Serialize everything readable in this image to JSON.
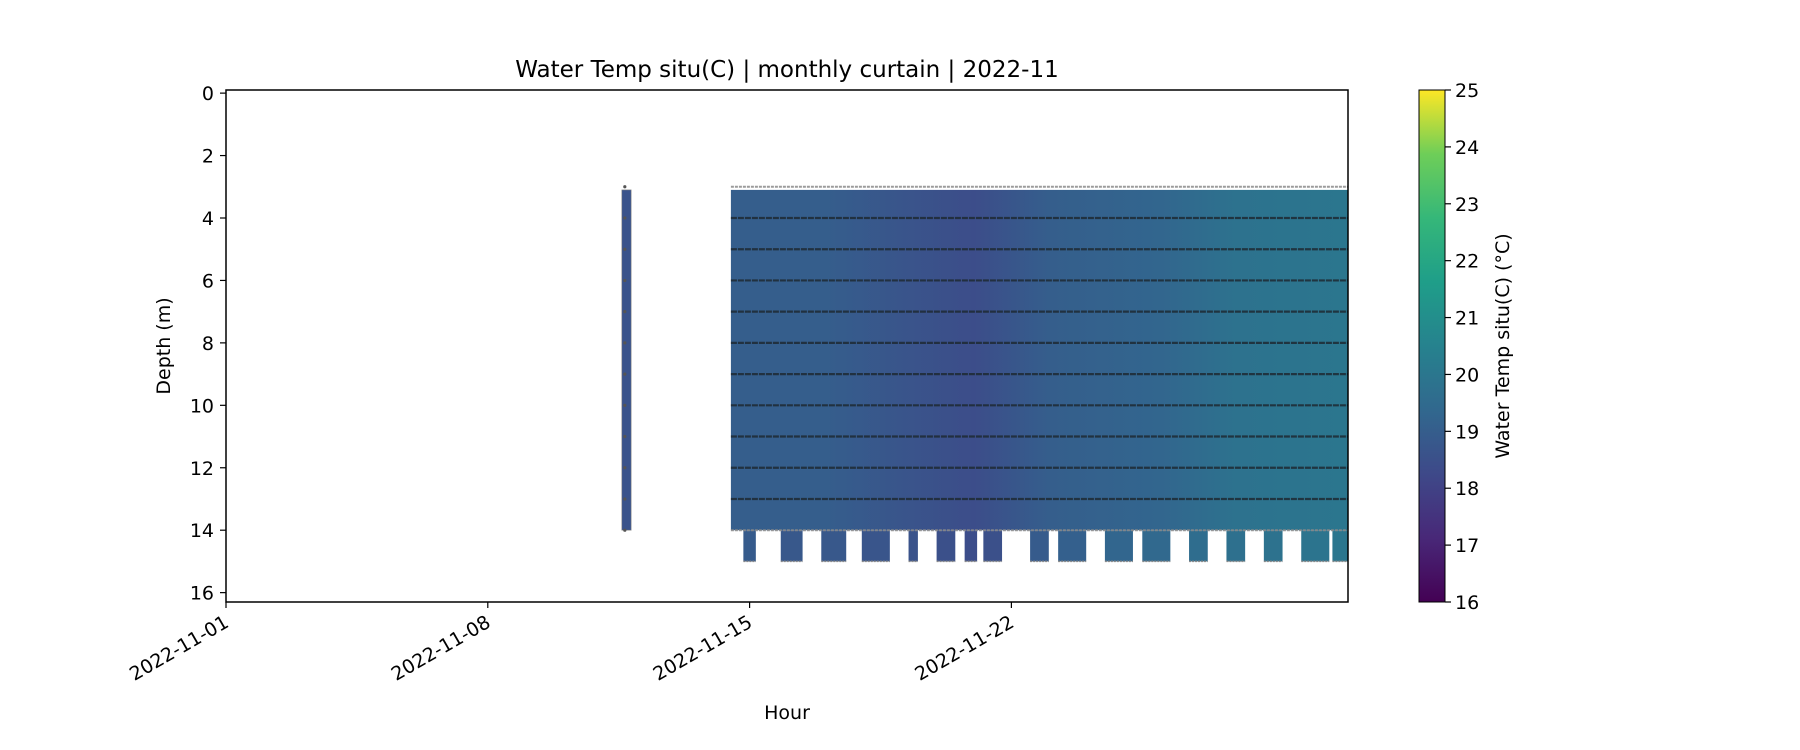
{
  "chart_data": {
    "type": "heatmap",
    "title": "Water Temp situ(C) | monthly curtain | 2022-11",
    "xlabel": "Hour",
    "ylabel": "Depth (m)",
    "xlim": [
      "2022-11-01",
      "2022-12-01"
    ],
    "ylim": [
      16.3,
      -0.1
    ],
    "x_ticks": [
      "2022-11-01",
      "2022-11-08",
      "2022-11-15",
      "2022-11-22"
    ],
    "y_ticks": [
      0,
      2,
      4,
      6,
      8,
      10,
      12,
      14,
      16
    ],
    "y_inverted": true,
    "colormap": "viridis",
    "colorbar": {
      "label": "Water Temp situ(C) (°C)",
      "min": 16,
      "max": 25,
      "ticks": [
        16,
        17,
        18,
        19,
        20,
        21,
        22,
        23,
        24,
        25
      ]
    },
    "sensor_depths": [
      3,
      4,
      5,
      6,
      7,
      8,
      9,
      10,
      11,
      12,
      13,
      14
    ],
    "profiles": [
      {
        "start": "2022-11-11T14:00",
        "end": "2022-11-11T20:00",
        "depth_top": 3.1,
        "depth_bottom": 14.0,
        "temperature": 18.6
      },
      {
        "start": "2022-11-14T12:00",
        "end": "2022-12-01T00:00",
        "depth_top": 3.1,
        "depth_bottom": 14.0,
        "temperature_trend": [
          {
            "date": "2022-11-14T12:00",
            "value": 19.0
          },
          {
            "date": "2022-11-17T00:00",
            "value": 19.0
          },
          {
            "date": "2022-11-19T00:00",
            "value": 18.7
          },
          {
            "date": "2022-11-21T00:00",
            "value": 18.4
          },
          {
            "date": "2022-11-23T00:00",
            "value": 19.0
          },
          {
            "date": "2022-11-26T00:00",
            "value": 19.3
          },
          {
            "date": "2022-11-28T00:00",
            "value": 19.8
          },
          {
            "date": "2022-12-01T00:00",
            "value": 20.0
          }
        ]
      }
    ],
    "deep_segments": [
      {
        "start": "2022-11-14T20:00",
        "end": "2022-11-15T04:00",
        "depth_bottom": 15.0,
        "temperature": 18.9
      },
      {
        "start": "2022-11-15T20:00",
        "end": "2022-11-16T10:00",
        "depth_bottom": 15.0,
        "temperature": 18.8
      },
      {
        "start": "2022-11-16T22:00",
        "end": "2022-11-17T14:00",
        "depth_bottom": 15.0,
        "temperature": 18.8
      },
      {
        "start": "2022-11-18T00:00",
        "end": "2022-11-18T18:00",
        "depth_bottom": 15.0,
        "temperature": 18.7
      },
      {
        "start": "2022-11-19T06:00",
        "end": "2022-11-19T12:00",
        "depth_bottom": 15.0,
        "temperature": 18.6
      },
      {
        "start": "2022-11-20T00:00",
        "end": "2022-11-20T12:00",
        "depth_bottom": 15.0,
        "temperature": 18.5
      },
      {
        "start": "2022-11-20T18:00",
        "end": "2022-11-21T02:00",
        "depth_bottom": 15.0,
        "temperature": 18.4
      },
      {
        "start": "2022-11-21T06:00",
        "end": "2022-11-21T18:00",
        "depth_bottom": 15.0,
        "temperature": 18.5
      },
      {
        "start": "2022-11-22T12:00",
        "end": "2022-11-23T00:00",
        "depth_bottom": 15.0,
        "temperature": 18.9
      },
      {
        "start": "2022-11-23T06:00",
        "end": "2022-11-24T00:00",
        "depth_bottom": 15.0,
        "temperature": 19.1
      },
      {
        "start": "2022-11-24T12:00",
        "end": "2022-11-25T06:00",
        "depth_bottom": 15.0,
        "temperature": 19.3
      },
      {
        "start": "2022-11-25T12:00",
        "end": "2022-11-26T06:00",
        "depth_bottom": 15.0,
        "temperature": 19.4
      },
      {
        "start": "2022-11-26T18:00",
        "end": "2022-11-27T06:00",
        "depth_bottom": 15.0,
        "temperature": 19.6
      },
      {
        "start": "2022-11-27T18:00",
        "end": "2022-11-28T06:00",
        "depth_bottom": 15.0,
        "temperature": 19.7
      },
      {
        "start": "2022-11-28T18:00",
        "end": "2022-11-29T06:00",
        "depth_bottom": 15.0,
        "temperature": 19.8
      },
      {
        "start": "2022-11-29T18:00",
        "end": "2022-11-30T12:00",
        "depth_bottom": 15.0,
        "temperature": 19.9
      },
      {
        "start": "2022-11-30T14:00",
        "end": "2022-12-01T00:00",
        "depth_bottom": 15.0,
        "temperature": 20.0
      }
    ]
  }
}
